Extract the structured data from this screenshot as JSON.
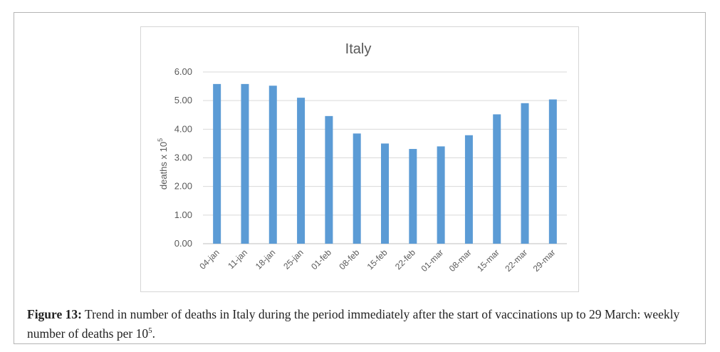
{
  "chart_data": {
    "type": "bar",
    "title": "Italy",
    "xlabel": "",
    "ylabel_main": "deaths x 10",
    "ylabel_sup": "5",
    "ylim": [
      0,
      6
    ],
    "yticks": [
      0,
      1,
      2,
      3,
      4,
      5,
      6
    ],
    "ytick_labels": [
      "0.00",
      "1.00",
      "2.00",
      "3.00",
      "4.00",
      "5.00",
      "6.00"
    ],
    "categories": [
      "04-jan",
      "11-jan",
      "18-jan",
      "25-jan",
      "01-feb",
      "08-feb",
      "15-feb",
      "22-feb",
      "01-mar",
      "08-mar",
      "15-mar",
      "22-mar",
      "29-mar"
    ],
    "values": [
      5.58,
      5.58,
      5.52,
      5.1,
      4.46,
      3.85,
      3.5,
      3.31,
      3.4,
      3.79,
      4.52,
      4.91,
      5.04
    ],
    "bar_color": "#5b9bd5",
    "grid": true
  },
  "caption": {
    "label": "Figure 13:",
    "text": "Trend in number of deaths in Italy during the period immediately after the start of vaccinations up to 29 March: weekly number of deaths per 10",
    "sup": "5",
    "end": "."
  }
}
